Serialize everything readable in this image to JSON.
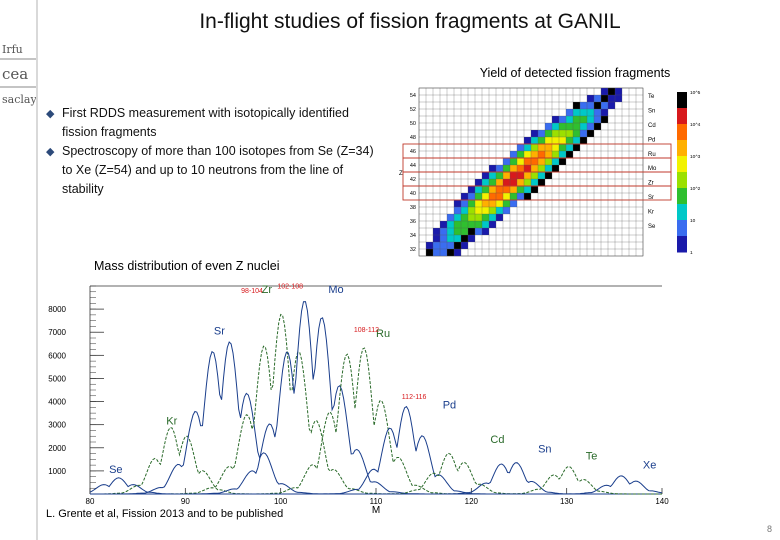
{
  "slide": {
    "title": "In-flight studies of fission fragments at GANIL",
    "logo_lines": [
      "Irfu",
      "cea",
      "saclay"
    ],
    "bullets": [
      "First RDDS measurement with isotopically identified fission fragments",
      "Spectroscopy of more than 100 isotopes from Se (Z=34) to Xe (Z=54) and up to 10 neutrons from the line of stability"
    ],
    "yield_caption": "Yield of detected fission fragments",
    "mass_caption": "Mass distribution of even Z nuclei",
    "citation": "L. Grente et al, Fission 2013 and to be published",
    "page_number": "8"
  },
  "chart_data": [
    {
      "type": "heatmap",
      "title": "Yield of detected fission fragments",
      "ylabel": "Z",
      "y_ticks": [
        "54",
        "52",
        "50",
        "48",
        "46",
        "44",
        "42",
        "40",
        "38",
        "36",
        "34",
        "32"
      ],
      "element_labels": [
        "Te",
        "Sn",
        "Cd",
        "Pd",
        "Ru",
        "Mo",
        "Zr",
        "Sr",
        "Kr",
        "Se"
      ],
      "color_scale_ticks": [
        "10^5",
        "10^4",
        "10^3",
        "10^2",
        "10",
        "1"
      ],
      "highlighted_rows": [
        "46",
        "44",
        "42",
        "40"
      ],
      "colors": [
        "#000000",
        "#d7191c",
        "#ff6a00",
        "#ffb000",
        "#f2f200",
        "#9be000",
        "#2fbf2f",
        "#00c8c8",
        "#3a6df0",
        "#1a1aaa",
        "#ffffff"
      ]
    },
    {
      "type": "line",
      "title": "Mass distribution of even Z nuclei",
      "xlabel": "M",
      "xlim": [
        80,
        140
      ],
      "ylim": [
        0,
        9000
      ],
      "x_ticks": [
        80,
        90,
        100,
        110,
        120,
        130,
        140
      ],
      "y_ticks": [
        1000,
        2000,
        3000,
        4000,
        5000,
        6000,
        7000,
        8000
      ],
      "grid": false,
      "series": [
        {
          "name": "Se",
          "color": "#1a3e8c",
          "center": 83,
          "peak": 700
        },
        {
          "name": "Kr",
          "color": "#2a6a2a",
          "center": 89,
          "peak": 3000
        },
        {
          "name": "Sr",
          "color": "#1a3e8c",
          "center": 94,
          "peak": 6800
        },
        {
          "name": "Zr",
          "color": "#2a6a2a",
          "center": 100,
          "peak": 7800
        },
        {
          "name": "Mo",
          "color": "#1a3e8c",
          "center": 103,
          "peak": 8500
        },
        {
          "name": "Ru",
          "color": "#2a6a2a",
          "center": 108,
          "peak": 6600
        },
        {
          "name": "Pd",
          "color": "#1a3e8c",
          "center": 113,
          "peak": 3800
        },
        {
          "name": "Cd",
          "color": "#2a6a2a",
          "center": 118,
          "peak": 1800
        },
        {
          "name": "Sn",
          "color": "#1a3e8c",
          "center": 124,
          "peak": 1500
        },
        {
          "name": "Te",
          "color": "#2a6a2a",
          "center": 130,
          "peak": 1200
        },
        {
          "name": "Xe",
          "color": "#1a3e8c",
          "center": 136,
          "peak": 800
        }
      ],
      "series_labels": [
        {
          "text": "Se",
          "x": 82,
          "y": 900,
          "color": "#1a3e8c"
        },
        {
          "text": "Kr",
          "x": 88,
          "y": 3000,
          "color": "#2a6a2a"
        },
        {
          "text": "Sr",
          "x": 93,
          "y": 6900,
          "color": "#1a3e8c"
        },
        {
          "text": "Zr",
          "x": 98,
          "y": 8700,
          "color": "#2a6a2a"
        },
        {
          "text": "Mo",
          "x": 105,
          "y": 8700,
          "color": "#1a3e8c"
        },
        {
          "text": "Ru",
          "x": 110,
          "y": 6800,
          "color": "#2a6a2a"
        },
        {
          "text": "Pd",
          "x": 117,
          "y": 3700,
          "color": "#1a3e8c"
        },
        {
          "text": "Cd",
          "x": 122,
          "y": 2200,
          "color": "#2a6a2a"
        },
        {
          "text": "Sn",
          "x": 127,
          "y": 1800,
          "color": "#1a3e8c"
        },
        {
          "text": "Te",
          "x": 132,
          "y": 1500,
          "color": "#2a6a2a"
        },
        {
          "text": "Xe",
          "x": 138,
          "y": 1100,
          "color": "#1a3e8c"
        }
      ],
      "annotations": [
        {
          "text": "98-104",
          "x": 97,
          "y": 8700,
          "color": "#d7191c"
        },
        {
          "text": "102-108",
          "x": 101,
          "y": 8900,
          "color": "#d7191c"
        },
        {
          "text": "108-112",
          "x": 109,
          "y": 7000,
          "color": "#d7191c"
        },
        {
          "text": "112-116",
          "x": 114,
          "y": 4100,
          "color": "#d7191c"
        }
      ]
    }
  ]
}
